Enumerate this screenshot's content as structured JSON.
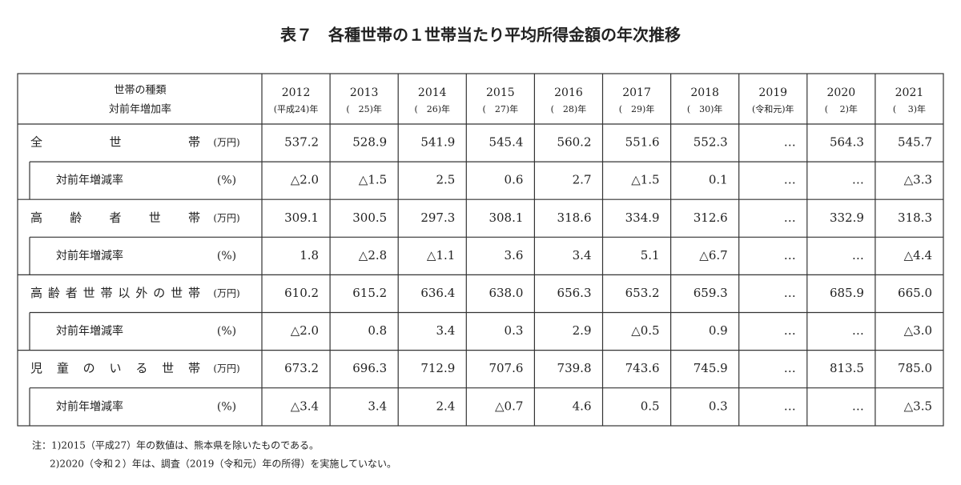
{
  "title": "表７　各種世帯の１世帯当たり平均所得金額の年次推移",
  "table": {
    "header_label": [
      "世帯の種類",
      "対前年増加率"
    ],
    "years": [
      {
        "year": "2012",
        "era": "(平成24)年"
      },
      {
        "year": "2013",
        "era": "(　25)年"
      },
      {
        "year": "2014",
        "era": "(　26)年"
      },
      {
        "year": "2015",
        "era": "(　27)年"
      },
      {
        "year": "2016",
        "era": "(　28)年"
      },
      {
        "year": "2017",
        "era": "(　29)年"
      },
      {
        "year": "2018",
        "era": "(　30)年"
      },
      {
        "year": "2019",
        "era": "(令和元)年"
      },
      {
        "year": "2020",
        "era": "(　 2)年"
      },
      {
        "year": "2021",
        "era": "(　 3)年"
      }
    ],
    "rows": [
      {
        "label": "全世帯",
        "unit": "(万円)",
        "values": [
          "537.2",
          "528.9",
          "541.9",
          "545.4",
          "560.2",
          "551.6",
          "552.3",
          "…",
          "564.3",
          "545.7"
        ]
      },
      {
        "label": "対前年増減率",
        "unit": "(%)",
        "values": [
          "△2.0",
          "△1.5",
          "2.5",
          "0.6",
          "2.7",
          "△1.5",
          "0.1",
          "…",
          "…",
          "△3.3"
        ]
      },
      {
        "label": "高齢者世帯",
        "unit": "(万円)",
        "values": [
          "309.1",
          "300.5",
          "297.3",
          "308.1",
          "318.6",
          "334.9",
          "312.6",
          "…",
          "332.9",
          "318.3"
        ]
      },
      {
        "label": "対前年増減率",
        "unit": "(%)",
        "values": [
          "1.8",
          "△2.8",
          "△1.1",
          "3.6",
          "3.4",
          "5.1",
          "△6.7",
          "…",
          "…",
          "△4.4"
        ]
      },
      {
        "label": "高齢者世帯以外の世帯",
        "unit": "(万円)",
        "values": [
          "610.2",
          "615.2",
          "636.4",
          "638.0",
          "656.3",
          "653.2",
          "659.3",
          "…",
          "685.9",
          "665.0"
        ]
      },
      {
        "label": "対前年増減率",
        "unit": "(%)",
        "values": [
          "△2.0",
          "0.8",
          "3.4",
          "0.3",
          "2.9",
          "△0.5",
          "0.9",
          "…",
          "…",
          "△3.0"
        ]
      },
      {
        "label": "児童のいる世帯",
        "unit": "(万円)",
        "values": [
          "673.2",
          "696.3",
          "712.9",
          "707.6",
          "739.8",
          "743.6",
          "745.9",
          "…",
          "813.5",
          "785.0"
        ]
      },
      {
        "label": "対前年増減率",
        "unit": "(%)",
        "values": [
          "△3.4",
          "3.4",
          "2.4",
          "△0.7",
          "4.6",
          "0.5",
          "0.3",
          "…",
          "…",
          "△3.5"
        ]
      }
    ]
  },
  "notes": [
    "注：1)2015（平成27）年の数値は、熊本県を除いたものである。",
    "2)2020（令和２）年は、調査（2019（令和元）年の所得）を実施していない。"
  ]
}
